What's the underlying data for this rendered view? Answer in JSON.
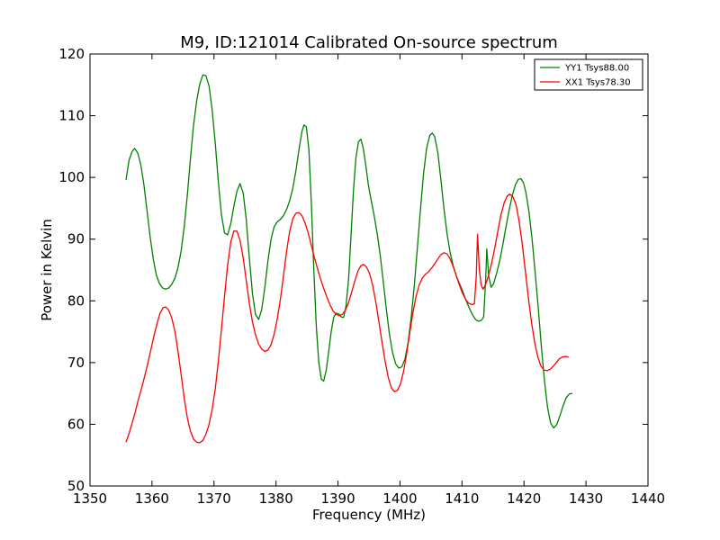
{
  "chart_data": {
    "type": "line",
    "title": "M9, ID:121014 Calibrated On-source spectrum",
    "xlabel": "Frequency (MHz)",
    "ylabel": "Power in Kelvin",
    "xlim": [
      1350,
      1440
    ],
    "ylim": [
      50,
      120
    ],
    "xticks": [
      "1350",
      "1360",
      "1370",
      "1380",
      "1390",
      "1400",
      "1410",
      "1420",
      "1430",
      "1440"
    ],
    "yticks": [
      "50",
      "60",
      "70",
      "80",
      "90",
      "100",
      "110",
      "120"
    ],
    "grid": false,
    "legend_position": "top-right",
    "series": [
      {
        "name": "YY1 Tsys88.00",
        "color": "#008000",
        "points": [
          [
            1355.8,
            99.6
          ],
          [
            1356.3,
            102.8
          ],
          [
            1356.8,
            104.2
          ],
          [
            1357.2,
            104.7
          ],
          [
            1357.7,
            104.0
          ],
          [
            1358.2,
            102.0
          ],
          [
            1358.7,
            98.8
          ],
          [
            1359.2,
            94.6
          ],
          [
            1359.7,
            90.4
          ],
          [
            1360.2,
            86.8
          ],
          [
            1360.7,
            84.2
          ],
          [
            1361.2,
            82.8
          ],
          [
            1361.7,
            82.1
          ],
          [
            1362.2,
            81.9
          ],
          [
            1362.7,
            82.1
          ],
          [
            1363.2,
            82.7
          ],
          [
            1363.7,
            83.7
          ],
          [
            1364.2,
            85.4
          ],
          [
            1364.7,
            88.1
          ],
          [
            1365.2,
            92.0
          ],
          [
            1365.7,
            97.2
          ],
          [
            1366.2,
            103.0
          ],
          [
            1366.7,
            108.4
          ],
          [
            1367.2,
            112.4
          ],
          [
            1367.7,
            115.1
          ],
          [
            1368.2,
            116.6
          ],
          [
            1368.7,
            116.5
          ],
          [
            1369.2,
            114.8
          ],
          [
            1369.7,
            111.0
          ],
          [
            1370.2,
            105.5
          ],
          [
            1370.7,
            99.3
          ],
          [
            1371.2,
            94.0
          ],
          [
            1371.7,
            91.0
          ],
          [
            1372.2,
            90.7
          ],
          [
            1372.7,
            92.5
          ],
          [
            1373.2,
            95.3
          ],
          [
            1373.7,
            97.8
          ],
          [
            1374.2,
            99.0
          ],
          [
            1374.7,
            97.5
          ],
          [
            1375.2,
            93.2
          ],
          [
            1375.7,
            87.0
          ],
          [
            1376.2,
            81.2
          ],
          [
            1376.7,
            77.8
          ],
          [
            1377.2,
            77.0
          ],
          [
            1377.7,
            78.6
          ],
          [
            1378.2,
            82.2
          ],
          [
            1378.7,
            86.5
          ],
          [
            1379.2,
            90.0
          ],
          [
            1379.7,
            92.0
          ],
          [
            1380.2,
            92.8
          ],
          [
            1380.7,
            93.2
          ],
          [
            1381.2,
            93.8
          ],
          [
            1381.7,
            94.8
          ],
          [
            1382.2,
            96.2
          ],
          [
            1382.7,
            98.2
          ],
          [
            1383.2,
            101.0
          ],
          [
            1383.7,
            104.5
          ],
          [
            1384.2,
            107.5
          ],
          [
            1384.5,
            108.5
          ],
          [
            1384.9,
            108.2
          ],
          [
            1385.3,
            104.5
          ],
          [
            1385.7,
            96.0
          ],
          [
            1386.1,
            85.0
          ],
          [
            1386.5,
            76.0
          ],
          [
            1386.9,
            70.0
          ],
          [
            1387.3,
            67.3
          ],
          [
            1387.7,
            67.0
          ],
          [
            1388.1,
            68.8
          ],
          [
            1388.5,
            71.8
          ],
          [
            1388.9,
            75.0
          ],
          [
            1389.3,
            77.3
          ],
          [
            1389.7,
            78.0
          ],
          [
            1390.1,
            77.9
          ],
          [
            1390.5,
            77.4
          ],
          [
            1390.9,
            77.3
          ],
          [
            1391.3,
            79.2
          ],
          [
            1391.7,
            83.5
          ],
          [
            1392.1,
            90.5
          ],
          [
            1392.5,
            98.0
          ],
          [
            1392.9,
            103.2
          ],
          [
            1393.3,
            105.8
          ],
          [
            1393.7,
            106.2
          ],
          [
            1394.1,
            104.6
          ],
          [
            1394.5,
            101.8
          ],
          [
            1394.9,
            98.8
          ],
          [
            1395.3,
            96.5
          ],
          [
            1395.8,
            94.0
          ],
          [
            1396.3,
            91.0
          ],
          [
            1396.8,
            87.5
          ],
          [
            1397.3,
            83.2
          ],
          [
            1397.8,
            78.6
          ],
          [
            1398.3,
            74.6
          ],
          [
            1398.8,
            71.6
          ],
          [
            1399.3,
            69.8
          ],
          [
            1399.8,
            69.1
          ],
          [
            1400.3,
            69.3
          ],
          [
            1400.8,
            70.6
          ],
          [
            1401.3,
            73.2
          ],
          [
            1401.8,
            77.2
          ],
          [
            1402.3,
            82.4
          ],
          [
            1402.8,
            88.5
          ],
          [
            1403.3,
            94.8
          ],
          [
            1403.8,
            100.6
          ],
          [
            1404.3,
            104.8
          ],
          [
            1404.8,
            106.8
          ],
          [
            1405.2,
            107.2
          ],
          [
            1405.6,
            106.6
          ],
          [
            1406.1,
            104.0
          ],
          [
            1406.6,
            99.6
          ],
          [
            1407.1,
            94.8
          ],
          [
            1407.6,
            90.8
          ],
          [
            1408.1,
            87.8
          ],
          [
            1408.6,
            85.6
          ],
          [
            1409.1,
            84.0
          ],
          [
            1409.6,
            82.8
          ],
          [
            1410.1,
            81.6
          ],
          [
            1410.6,
            80.2
          ],
          [
            1411.1,
            79.0
          ],
          [
            1411.6,
            77.9
          ],
          [
            1412.1,
            77.1
          ],
          [
            1412.6,
            76.7
          ],
          [
            1413.1,
            76.8
          ],
          [
            1413.5,
            77.4
          ],
          [
            1413.8,
            83.0
          ],
          [
            1414.0,
            88.4
          ],
          [
            1414.3,
            84.0
          ],
          [
            1414.7,
            82.2
          ],
          [
            1415.1,
            82.8
          ],
          [
            1415.6,
            84.5
          ],
          [
            1416.1,
            86.6
          ],
          [
            1416.6,
            89.2
          ],
          [
            1417.1,
            92.0
          ],
          [
            1417.6,
            94.7
          ],
          [
            1418.1,
            97.0
          ],
          [
            1418.6,
            98.8
          ],
          [
            1419.1,
            99.7
          ],
          [
            1419.5,
            99.8
          ],
          [
            1419.9,
            99.2
          ],
          [
            1420.3,
            97.6
          ],
          [
            1420.8,
            94.5
          ],
          [
            1421.3,
            90.0
          ],
          [
            1421.8,
            84.6
          ],
          [
            1422.3,
            78.8
          ],
          [
            1422.8,
            72.6
          ],
          [
            1423.3,
            67.0
          ],
          [
            1423.8,
            62.7
          ],
          [
            1424.3,
            60.2
          ],
          [
            1424.8,
            59.4
          ],
          [
            1425.3,
            60.0
          ],
          [
            1425.8,
            61.4
          ],
          [
            1426.3,
            63.0
          ],
          [
            1426.8,
            64.3
          ],
          [
            1427.3,
            64.9
          ],
          [
            1427.8,
            65.0
          ]
        ]
      },
      {
        "name": "XX1 Tsys78.30",
        "color": "#ff0000",
        "points": [
          [
            1355.8,
            57.1
          ],
          [
            1356.3,
            58.5
          ],
          [
            1356.8,
            60.2
          ],
          [
            1357.3,
            62.0
          ],
          [
            1357.8,
            64.0
          ],
          [
            1358.3,
            65.8
          ],
          [
            1358.8,
            67.7
          ],
          [
            1359.3,
            69.8
          ],
          [
            1359.8,
            72.0
          ],
          [
            1360.3,
            74.3
          ],
          [
            1360.8,
            76.3
          ],
          [
            1361.3,
            78.0
          ],
          [
            1361.8,
            78.9
          ],
          [
            1362.2,
            79.0
          ],
          [
            1362.7,
            78.5
          ],
          [
            1363.2,
            77.2
          ],
          [
            1363.7,
            75.0
          ],
          [
            1364.2,
            71.8
          ],
          [
            1364.7,
            68.0
          ],
          [
            1365.2,
            64.2
          ],
          [
            1365.7,
            61.0
          ],
          [
            1366.2,
            58.9
          ],
          [
            1366.7,
            57.6
          ],
          [
            1367.2,
            57.1
          ],
          [
            1367.7,
            57.0
          ],
          [
            1368.2,
            57.4
          ],
          [
            1368.7,
            58.4
          ],
          [
            1369.2,
            60.0
          ],
          [
            1369.7,
            62.4
          ],
          [
            1370.2,
            65.8
          ],
          [
            1370.7,
            70.2
          ],
          [
            1371.2,
            75.3
          ],
          [
            1371.7,
            80.8
          ],
          [
            1372.2,
            85.8
          ],
          [
            1372.7,
            89.5
          ],
          [
            1373.2,
            91.3
          ],
          [
            1373.7,
            91.3
          ],
          [
            1374.2,
            89.8
          ],
          [
            1374.7,
            87.0
          ],
          [
            1375.2,
            83.3
          ],
          [
            1375.7,
            79.6
          ],
          [
            1376.2,
            76.6
          ],
          [
            1376.7,
            74.5
          ],
          [
            1377.2,
            73.0
          ],
          [
            1377.7,
            72.2
          ],
          [
            1378.2,
            71.8
          ],
          [
            1378.7,
            72.0
          ],
          [
            1379.2,
            72.9
          ],
          [
            1379.7,
            74.6
          ],
          [
            1380.2,
            77.0
          ],
          [
            1380.7,
            80.2
          ],
          [
            1381.2,
            84.0
          ],
          [
            1381.7,
            88.0
          ],
          [
            1382.2,
            91.2
          ],
          [
            1382.7,
            93.3
          ],
          [
            1383.2,
            94.2
          ],
          [
            1383.7,
            94.3
          ],
          [
            1384.2,
            93.8
          ],
          [
            1384.7,
            92.6
          ],
          [
            1385.2,
            91.0
          ],
          [
            1385.7,
            89.0
          ],
          [
            1386.2,
            87.0
          ],
          [
            1386.7,
            85.2
          ],
          [
            1387.2,
            83.5
          ],
          [
            1387.7,
            82.0
          ],
          [
            1388.2,
            80.6
          ],
          [
            1388.7,
            79.4
          ],
          [
            1389.2,
            78.4
          ],
          [
            1389.7,
            77.8
          ],
          [
            1390.2,
            77.6
          ],
          [
            1390.7,
            77.8
          ],
          [
            1391.2,
            78.5
          ],
          [
            1391.7,
            79.7
          ],
          [
            1392.2,
            81.4
          ],
          [
            1392.7,
            83.2
          ],
          [
            1393.2,
            84.8
          ],
          [
            1393.7,
            85.7
          ],
          [
            1394.1,
            85.9
          ],
          [
            1394.6,
            85.5
          ],
          [
            1395.1,
            84.4
          ],
          [
            1395.6,
            82.5
          ],
          [
            1396.1,
            79.8
          ],
          [
            1396.6,
            76.6
          ],
          [
            1397.1,
            73.3
          ],
          [
            1397.6,
            70.2
          ],
          [
            1398.1,
            67.6
          ],
          [
            1398.6,
            65.9
          ],
          [
            1399.1,
            65.3
          ],
          [
            1399.6,
            65.5
          ],
          [
            1400.1,
            66.6
          ],
          [
            1400.6,
            68.7
          ],
          [
            1401.1,
            71.6
          ],
          [
            1401.6,
            75.0
          ],
          [
            1402.1,
            78.2
          ],
          [
            1402.6,
            80.8
          ],
          [
            1403.1,
            82.6
          ],
          [
            1403.6,
            83.7
          ],
          [
            1404.1,
            84.3
          ],
          [
            1404.6,
            84.7
          ],
          [
            1405.1,
            85.3
          ],
          [
            1405.6,
            86.0
          ],
          [
            1406.1,
            86.8
          ],
          [
            1406.6,
            87.5
          ],
          [
            1407.1,
            87.8
          ],
          [
            1407.6,
            87.6
          ],
          [
            1408.1,
            86.8
          ],
          [
            1408.6,
            85.5
          ],
          [
            1409.1,
            84.0
          ],
          [
            1409.6,
            82.5
          ],
          [
            1410.1,
            81.2
          ],
          [
            1410.6,
            80.2
          ],
          [
            1411.1,
            79.6
          ],
          [
            1411.6,
            79.4
          ],
          [
            1412.0,
            79.5
          ],
          [
            1412.3,
            84.0
          ],
          [
            1412.5,
            90.8
          ],
          [
            1412.8,
            85.0
          ],
          [
            1413.1,
            82.5
          ],
          [
            1413.4,
            81.9
          ],
          [
            1413.8,
            82.6
          ],
          [
            1414.3,
            84.2
          ],
          [
            1414.8,
            86.2
          ],
          [
            1415.3,
            88.6
          ],
          [
            1415.8,
            91.4
          ],
          [
            1416.3,
            94.0
          ],
          [
            1416.8,
            95.9
          ],
          [
            1417.3,
            97.0
          ],
          [
            1417.7,
            97.3
          ],
          [
            1418.2,
            96.9
          ],
          [
            1418.7,
            95.6
          ],
          [
            1419.2,
            93.0
          ],
          [
            1419.7,
            89.3
          ],
          [
            1420.2,
            85.0
          ],
          [
            1420.7,
            80.6
          ],
          [
            1421.2,
            76.6
          ],
          [
            1421.7,
            73.4
          ],
          [
            1422.2,
            71.0
          ],
          [
            1422.7,
            69.5
          ],
          [
            1423.2,
            68.8
          ],
          [
            1423.7,
            68.7
          ],
          [
            1424.2,
            68.9
          ],
          [
            1424.7,
            69.4
          ],
          [
            1425.2,
            70.0
          ],
          [
            1425.7,
            70.6
          ],
          [
            1426.2,
            70.9
          ],
          [
            1426.7,
            71.0
          ],
          [
            1427.2,
            70.9
          ]
        ]
      }
    ]
  }
}
